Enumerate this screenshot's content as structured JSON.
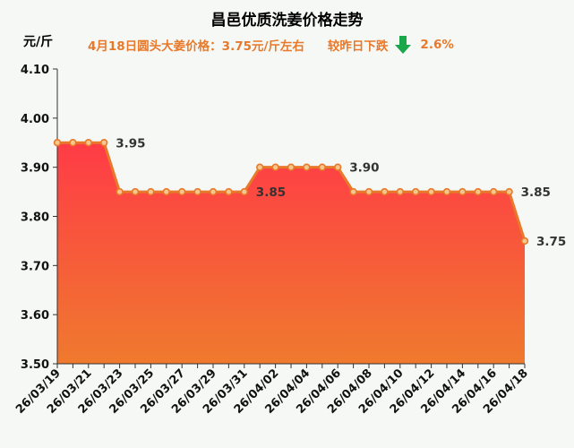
{
  "header": {
    "title": "昌邑优质洗姜价格走势",
    "price_note": "4月18日圆头大姜价格：3.75元/斤左右",
    "change_note": "较昨日下跌",
    "change_pct": "2.6%",
    "change_direction": "down",
    "arrow_icon": "down-arrow-icon",
    "arrow_color": "#1aa64a"
  },
  "chart_data": {
    "type": "area",
    "title": "昌邑优质洗姜价格走势",
    "ylabel": "元/斤",
    "xlabel": "",
    "ylim": [
      3.5,
      4.1
    ],
    "yticks": [
      "4.10",
      "4.00",
      "3.90",
      "3.80",
      "3.70",
      "3.60",
      "3.50"
    ],
    "x": [
      "26/03/19",
      "26/03/20",
      "26/03/21",
      "26/03/22",
      "26/03/23",
      "26/03/24",
      "26/03/25",
      "26/03/26",
      "26/03/27",
      "26/03/28",
      "26/03/29",
      "26/03/30",
      "26/03/31",
      "26/04/01",
      "26/04/02",
      "26/04/03",
      "26/04/04",
      "26/04/05",
      "26/04/06",
      "26/04/07",
      "26/04/08",
      "26/04/09",
      "26/04/10",
      "26/04/11",
      "26/04/12",
      "26/04/13",
      "26/04/14",
      "26/04/15",
      "26/04/16",
      "26/04/17",
      "26/04/18"
    ],
    "xtick_labels": [
      "26/03/19",
      "26/03/21",
      "26/03/23",
      "26/03/25",
      "26/03/27",
      "26/03/29",
      "26/03/31",
      "26/04/02",
      "26/04/04",
      "26/04/06",
      "26/04/08",
      "26/04/10",
      "26/04/12",
      "26/04/14",
      "26/04/16",
      "26/04/18"
    ],
    "values": [
      3.95,
      3.95,
      3.95,
      3.95,
      3.85,
      3.85,
      3.85,
      3.85,
      3.85,
      3.85,
      3.85,
      3.85,
      3.85,
      3.9,
      3.9,
      3.9,
      3.9,
      3.9,
      3.9,
      3.85,
      3.85,
      3.85,
      3.85,
      3.85,
      3.85,
      3.85,
      3.85,
      3.85,
      3.85,
      3.85,
      3.75
    ],
    "data_labels": [
      {
        "index": 3,
        "text": "3.95"
      },
      {
        "index": 12,
        "text": "3.85"
      },
      {
        "index": 18,
        "text": "3.90"
      },
      {
        "index": 29,
        "text": "3.85"
      },
      {
        "index": 30,
        "text": "3.75"
      }
    ],
    "colors": {
      "line": "#e8792a",
      "marker_fill": "#f3c78d",
      "area_top": "#ff3b46",
      "area_bottom": "#ef7a2e"
    },
    "grid": false
  }
}
